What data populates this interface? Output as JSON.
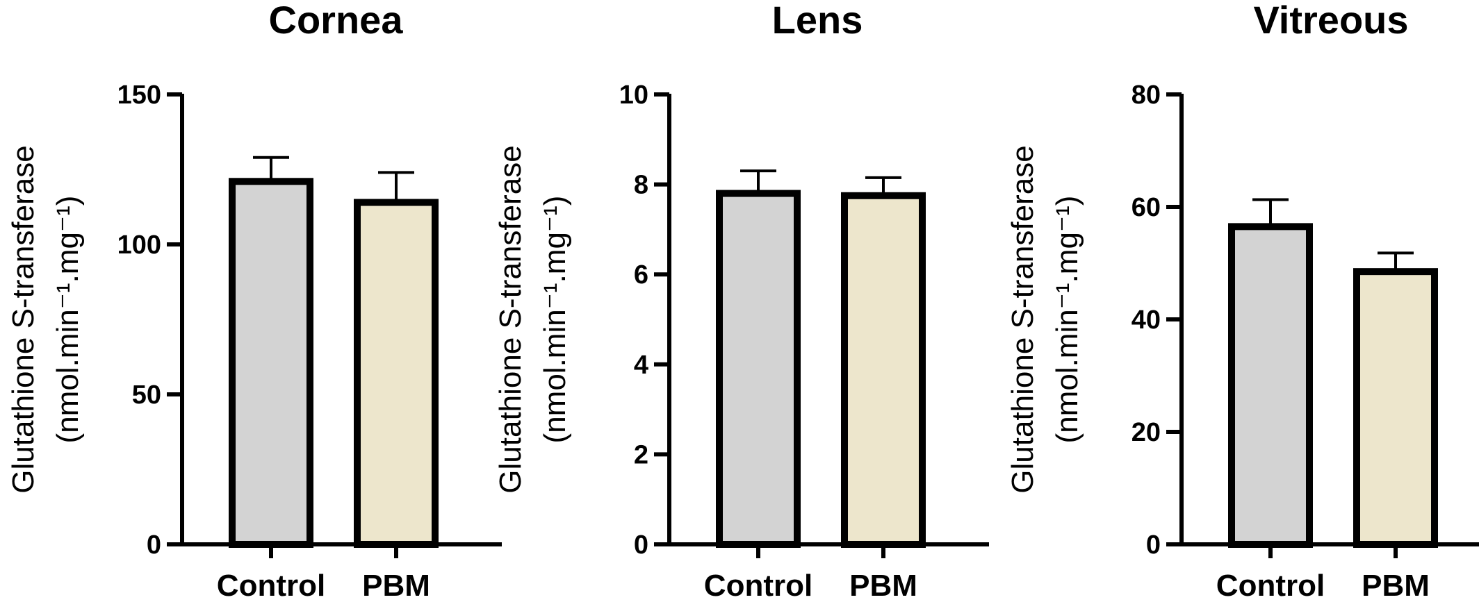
{
  "chart_data": [
    {
      "type": "bar",
      "title": "Cornea",
      "categories": [
        "Control",
        "PBM"
      ],
      "values": [
        121,
        114
      ],
      "errors": [
        8,
        10
      ],
      "ylabel_line1": "Glutathione S-transferase",
      "ylabel_line2": "(nmol.min⁻¹.mg⁻¹)",
      "ylim": [
        0,
        150
      ],
      "yticks": [
        0,
        50,
        100,
        150
      ],
      "colors": [
        "#d3d3d3",
        "#ede6cc"
      ]
    },
    {
      "type": "bar",
      "title": "Lens",
      "categories": [
        "Control",
        "PBM"
      ],
      "values": [
        7.8,
        7.75
      ],
      "errors": [
        0.5,
        0.4
      ],
      "ylabel_line1": "Glutathione S-transferase",
      "ylabel_line2": "(nmol.min⁻¹.mg⁻¹)",
      "ylim": [
        0,
        10
      ],
      "yticks": [
        0,
        2,
        4,
        6,
        8,
        10
      ],
      "colors": [
        "#d3d3d3",
        "#ede6cc"
      ]
    },
    {
      "type": "bar",
      "title": "Vitreous",
      "categories": [
        "Control",
        "PBM"
      ],
      "values": [
        56.5,
        48.5
      ],
      "errors": [
        4.8,
        3.3
      ],
      "ylabel_line1": "Glutathione S-transferase",
      "ylabel_line2": "(nmol.min⁻¹.mg⁻¹)",
      "ylim": [
        0,
        80
      ],
      "yticks": [
        0,
        20,
        40,
        60,
        80
      ],
      "colors": [
        "#d3d3d3",
        "#ede6cc"
      ]
    }
  ]
}
